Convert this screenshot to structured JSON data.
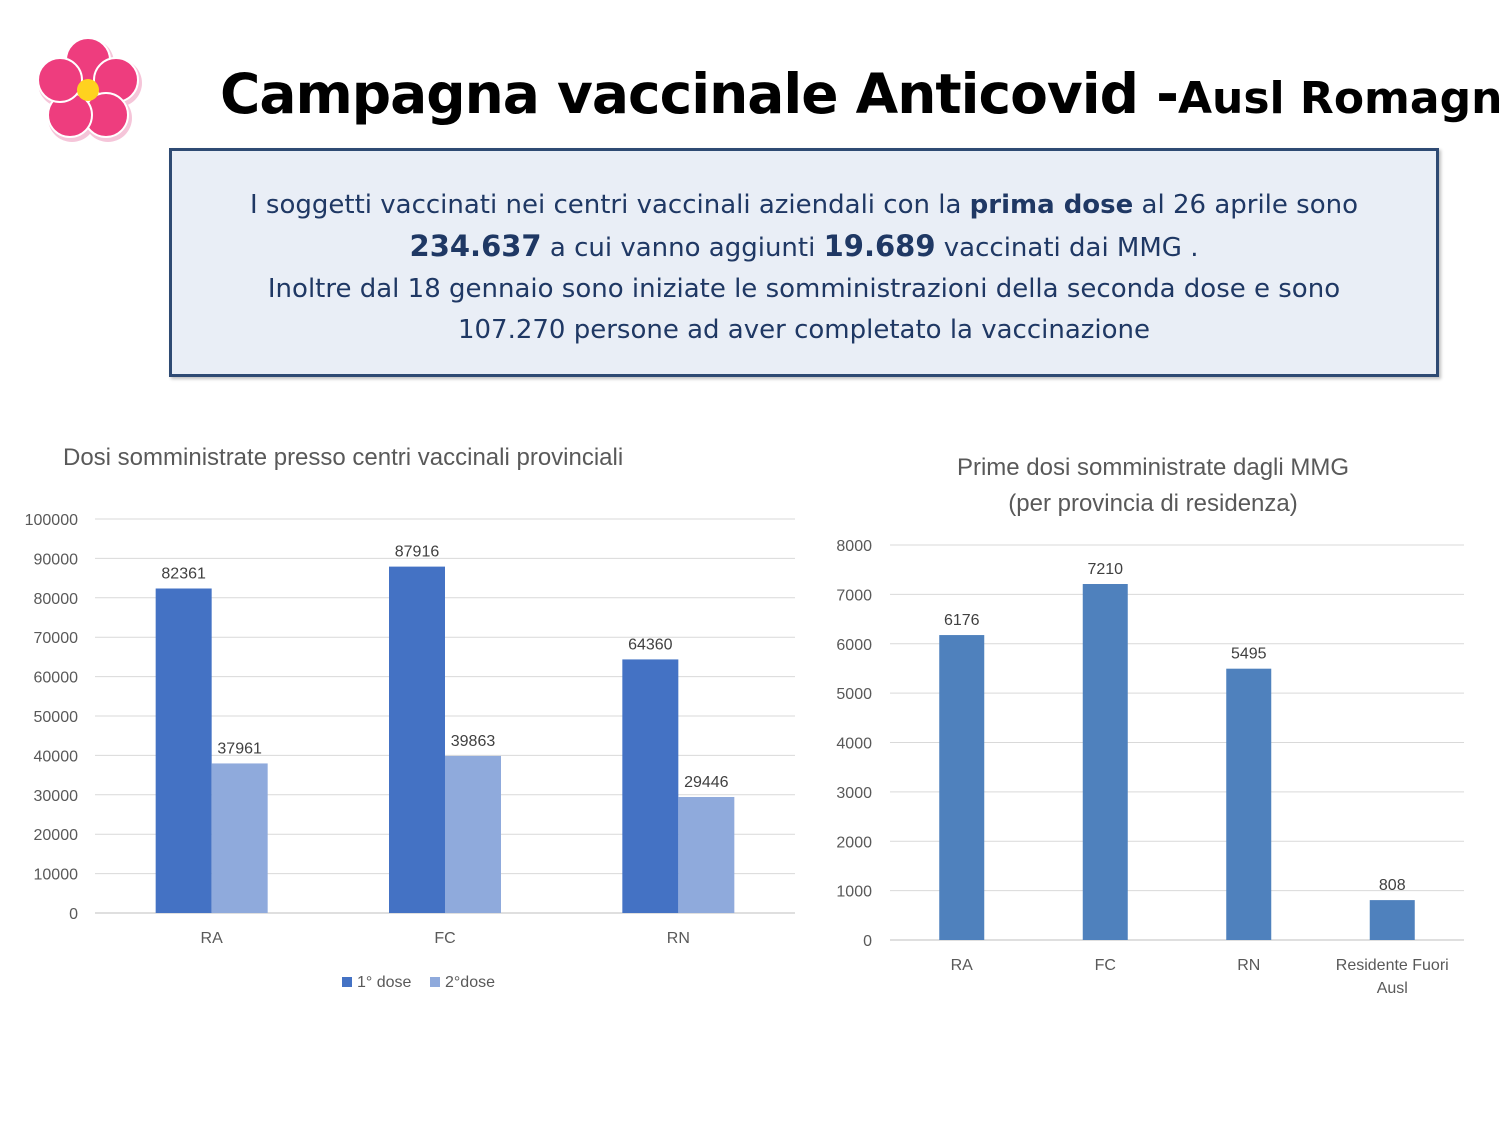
{
  "header": {
    "title_main": "Campagna vaccinale Anticovid -",
    "title_sub": "Ausl Romagna",
    "logo_icon": "flower-logo-icon"
  },
  "info": {
    "line1_pre": "I soggetti vaccinati nei centri vaccinali aziendali con la ",
    "line1_bold": "prima dose",
    "line1_post": " al 26 aprile sono",
    "line2_num1": "234.637",
    "line2_mid": " a cui vanno aggiunti ",
    "line2_num2": "19.689",
    "line2_post": " vaccinati dai MMG .",
    "line3": "Inoltre dal 18 gennaio sono iniziate le somministrazioni della  seconda dose  e sono",
    "line4": "107.270 persone ad aver completato la vaccinazione"
  },
  "colors": {
    "dose1": "#4472c4",
    "dose2": "#8faadc",
    "mmg": "#4f81bd",
    "box_border": "#2e4a73",
    "text_dark": "#1f3864"
  },
  "chart_data": [
    {
      "type": "bar",
      "title": "Dosi somministrate presso centri vaccinali provinciali",
      "categories": [
        "RA",
        "FC",
        "RN"
      ],
      "series": [
        {
          "name": "1° dose",
          "values": [
            82361,
            87916,
            64360
          ]
        },
        {
          "name": "2°dose",
          "values": [
            37961,
            39863,
            29446
          ]
        }
      ],
      "ylim": [
        0,
        100000
      ],
      "yticks": [
        0,
        10000,
        20000,
        30000,
        40000,
        50000,
        60000,
        70000,
        80000,
        90000,
        100000
      ],
      "grid": true,
      "legend": "bottom"
    },
    {
      "type": "bar",
      "title": "Prime dosi somministrate dagli MMG",
      "subtitle": "(per provincia di residenza)",
      "categories": [
        "RA",
        "FC",
        "RN",
        "Residente Fuori Ausl"
      ],
      "values": [
        6176,
        7210,
        5495,
        808
      ],
      "ylim": [
        0,
        8000
      ],
      "yticks": [
        0,
        1000,
        2000,
        3000,
        4000,
        5000,
        6000,
        7000,
        8000
      ],
      "grid": true
    }
  ]
}
